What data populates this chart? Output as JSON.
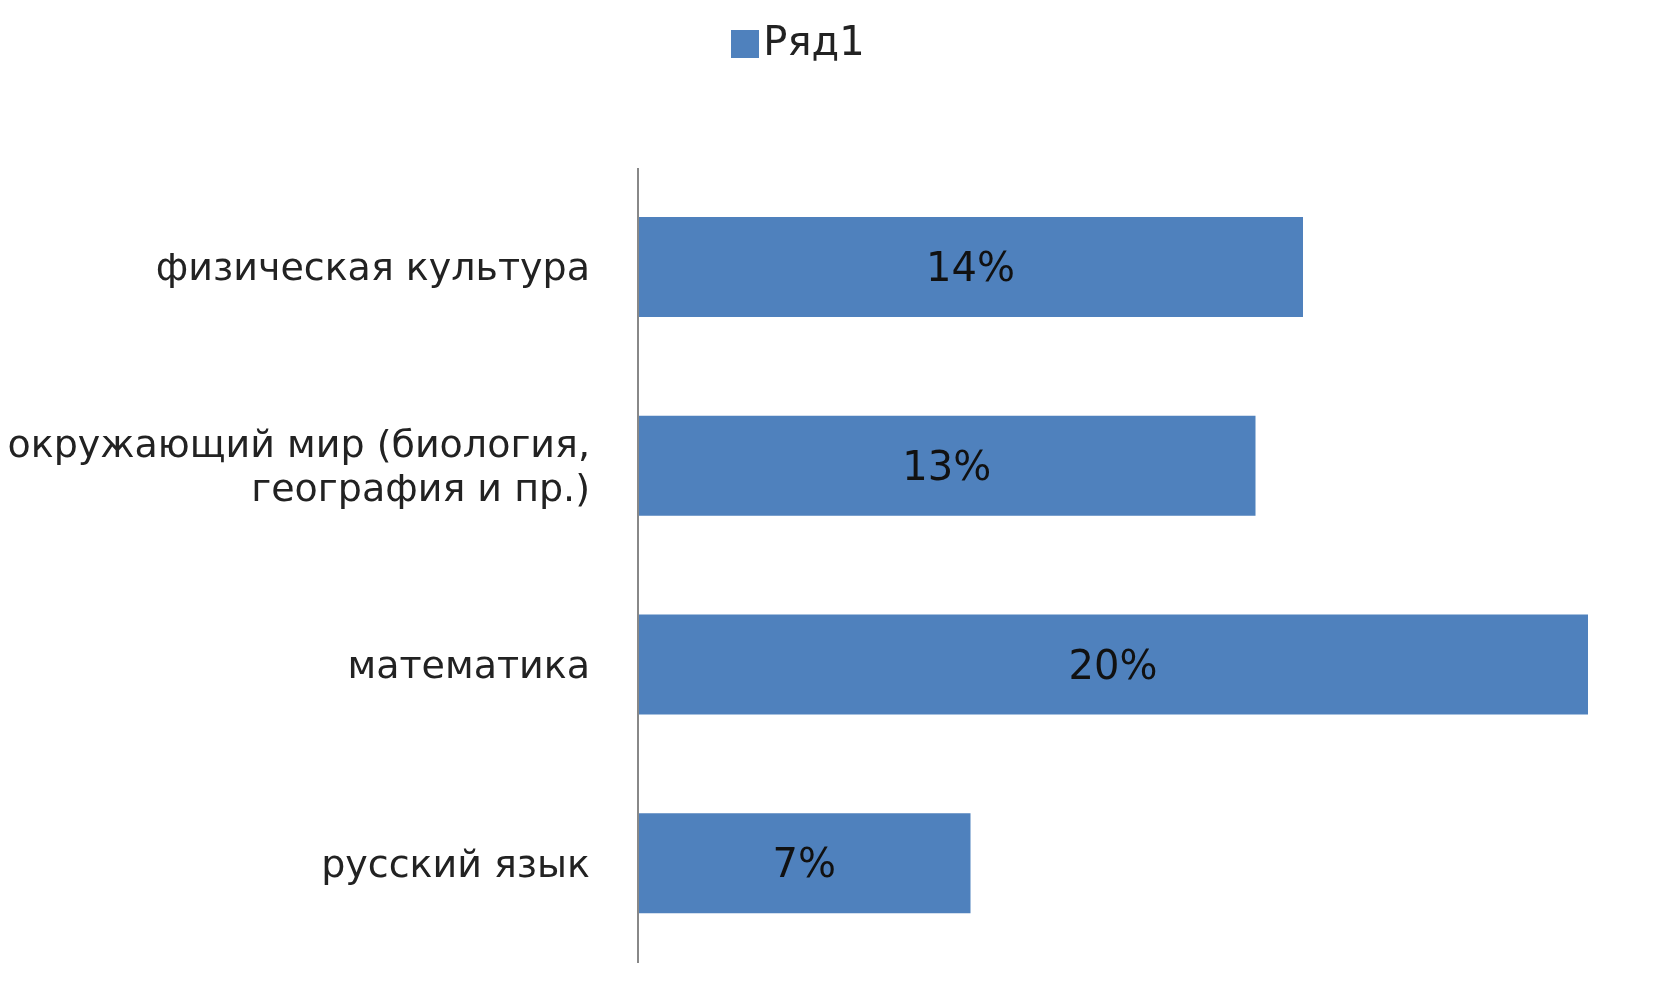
{
  "chart_data": {
    "type": "bar",
    "orientation": "horizontal",
    "categories": [
      "физическая культура",
      "окружающий мир (биология, география и пр.)",
      "математика",
      "русский язык"
    ],
    "series": [
      {
        "name": "Ряд1",
        "color": "#4f81bd",
        "values": [
          14,
          13,
          20,
          7
        ],
        "value_labels": [
          "14%",
          "13%",
          "20%",
          "7%"
        ]
      }
    ],
    "tick_labels": "y",
    "legend": "top",
    "grid": false
  }
}
